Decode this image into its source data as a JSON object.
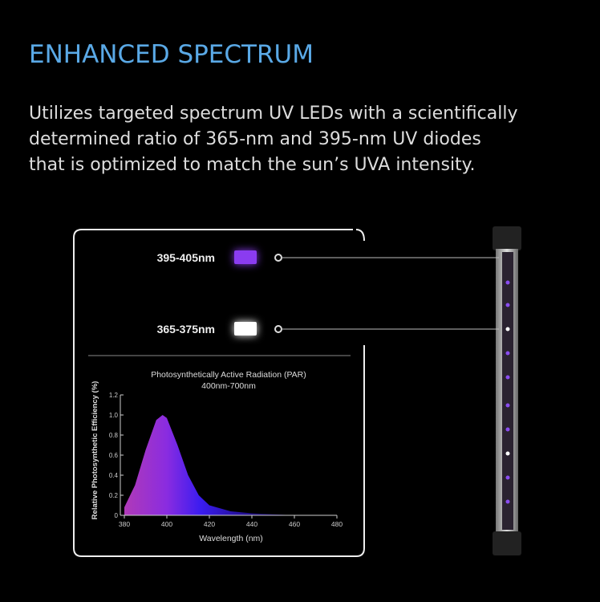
{
  "header": {
    "title": "ENHANCED SPECTRUM",
    "description": [
      "Utilizes targeted spectrum UV LEDs with a scientifically",
      "determined ratio of 365-nm and 395-nm UV diodes",
      "that is optimized to match the sun’s UVA intensity."
    ]
  },
  "legend": [
    {
      "label": "395-405nm",
      "color": "#8a3cf0"
    },
    {
      "label": "365-375nm",
      "color": "#ffffff"
    }
  ],
  "chart_data": {
    "type": "area",
    "title": "Photosynthetically Active Radiation (PAR)",
    "subtitle": "400nm-700nm",
    "x_label": "Wavelength (nm)",
    "y_label": "Relative Photosynthetic Efficiency (%)",
    "x": [
      380,
      385,
      390,
      395,
      398,
      400,
      405,
      410,
      415,
      420,
      430,
      440,
      450,
      460
    ],
    "values": [
      0.08,
      0.3,
      0.65,
      0.95,
      1.0,
      0.97,
      0.7,
      0.4,
      0.2,
      0.1,
      0.04,
      0.02,
      0.01,
      0
    ],
    "xlim": [
      380,
      480
    ],
    "ylim": [
      0,
      1.2
    ],
    "xticks": [
      380,
      400,
      420,
      440,
      460,
      480
    ],
    "yticks": [
      0,
      0.2,
      0.4,
      0.6,
      0.8,
      {
        "value": 1,
        "label": "1.0"
      },
      1.2
    ]
  }
}
